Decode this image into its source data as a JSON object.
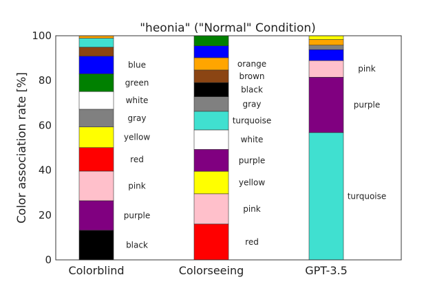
{
  "chart_data": {
    "type": "bar",
    "stacked": true,
    "title": "\"heonia\" (\"Normal\" Condition)",
    "xlabel": "",
    "ylabel": "Color association rate [%]",
    "ylim": [
      0,
      100
    ],
    "yticks": [
      0,
      20,
      40,
      60,
      80,
      100
    ],
    "grid": false,
    "legend": "none",
    "categories": [
      "Colorblind",
      "Colorseeing",
      "GPT-3.5"
    ],
    "bars": [
      {
        "category": "Colorblind",
        "segments": [
          {
            "label": "black",
            "color": "#000000",
            "value": 13.2,
            "labeled": true
          },
          {
            "label": "purple",
            "color": "#800080",
            "value": 13.2,
            "labeled": true
          },
          {
            "label": "pink",
            "color": "#FFC0CB",
            "value": 13.2,
            "labeled": true
          },
          {
            "label": "red",
            "color": "#FF0000",
            "value": 10.5,
            "labeled": true
          },
          {
            "label": "yellow",
            "color": "#FFFF00",
            "value": 9.2,
            "labeled": true
          },
          {
            "label": "gray",
            "color": "#808080",
            "value": 7.9,
            "labeled": true
          },
          {
            "label": "white",
            "color": "#FFFFFF",
            "value": 7.9,
            "labeled": true
          },
          {
            "label": "green",
            "color": "#008000",
            "value": 7.9,
            "labeled": true
          },
          {
            "label": "blue",
            "color": "#0000FF",
            "value": 7.9,
            "labeled": true
          },
          {
            "label": "brown",
            "color": "#8B4513",
            "value": 4.0,
            "labeled": false
          },
          {
            "label": "turquoise",
            "color": "#40E0D0",
            "value": 4.0,
            "labeled": false
          },
          {
            "label": "orange",
            "color": "#FFA500",
            "value": 1.1,
            "labeled": false
          }
        ]
      },
      {
        "category": "Colorseeing",
        "segments": [
          {
            "label": "red",
            "color": "#FF0000",
            "value": 16.0,
            "labeled": true
          },
          {
            "label": "pink",
            "color": "#FFC0CB",
            "value": 13.5,
            "labeled": true
          },
          {
            "label": "yellow",
            "color": "#FFFF00",
            "value": 10.0,
            "labeled": true
          },
          {
            "label": "purple",
            "color": "#800080",
            "value": 9.8,
            "labeled": true
          },
          {
            "label": "white",
            "color": "#FFFFFF",
            "value": 8.7,
            "labeled": true
          },
          {
            "label": "turquoise",
            "color": "#40E0D0",
            "value": 8.3,
            "labeled": true
          },
          {
            "label": "gray",
            "color": "#808080",
            "value": 6.5,
            "labeled": true
          },
          {
            "label": "black",
            "color": "#000000",
            "value": 6.3,
            "labeled": true
          },
          {
            "label": "brown",
            "color": "#8B4513",
            "value": 5.6,
            "labeled": true
          },
          {
            "label": "orange",
            "color": "#FFA500",
            "value": 5.5,
            "labeled": true
          },
          {
            "label": "blue",
            "color": "#0000FF",
            "value": 5.3,
            "labeled": false
          },
          {
            "label": "green",
            "color": "#008000",
            "value": 4.5,
            "labeled": false
          }
        ]
      },
      {
        "category": "GPT-3.5",
        "segments": [
          {
            "label": "turquoise",
            "color": "#40E0D0",
            "value": 56.8,
            "labeled": true
          },
          {
            "label": "purple",
            "color": "#800080",
            "value": 24.7,
            "labeled": true
          },
          {
            "label": "pink",
            "color": "#FFC0CB",
            "value": 7.4,
            "labeled": true
          },
          {
            "label": "blue",
            "color": "#0000FF",
            "value": 4.9,
            "labeled": false
          },
          {
            "label": "gray",
            "color": "#808080",
            "value": 2.0,
            "labeled": false
          },
          {
            "label": "orange",
            "color": "#FFA500",
            "value": 2.5,
            "labeled": false
          },
          {
            "label": "yellow",
            "color": "#FFFF00",
            "value": 1.7,
            "labeled": false
          }
        ]
      }
    ]
  }
}
